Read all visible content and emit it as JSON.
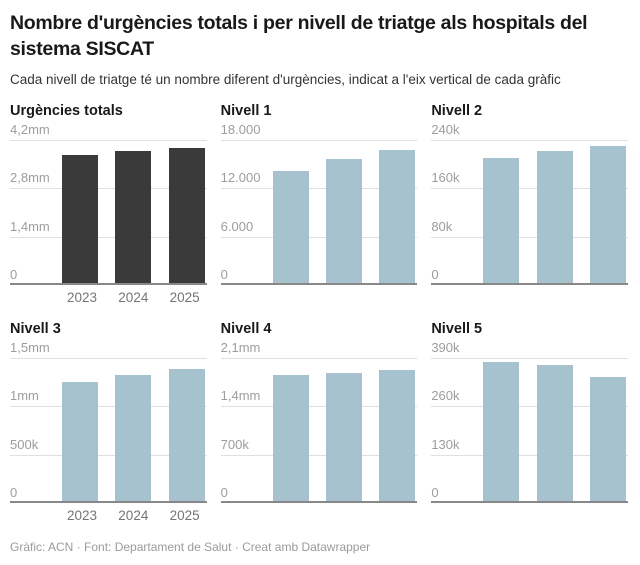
{
  "page": {
    "title": "Nombre d'urgències totals i per nivell de triatge als hospitals del sistema SISCAT",
    "subtitle": "Cada nivell de triatge té un nombre diferent d'urgències, indicat a l'eix vertical de cada gràfic",
    "footer": "Gràfic: ACN · Font: Departament de Salut · Creat amb Datawrapper"
  },
  "colors": {
    "dark_bar": "#3a3a3a",
    "blue_bar": "#a6c2ce",
    "gridline": "#e0e0e0",
    "axis_line": "#888888",
    "y_tick_label": "#9d9d9d",
    "x_tick_label": "#757575",
    "title_text": "#191919",
    "subtitle_text": "#333333",
    "footer_text": "#9b9b9b"
  },
  "chart_data": [
    {
      "type": "bar",
      "title": "Urgències totals",
      "categories": [
        "2023",
        "2024",
        "2025"
      ],
      "values": [
        3750000,
        3870000,
        3960000
      ],
      "ylim": [
        0,
        4200000
      ],
      "y_ticks": [
        {
          "label": "4,2mm",
          "value": 4200000
        },
        {
          "label": "2,8mm",
          "value": 2800000
        },
        {
          "label": "1,4mm",
          "value": 1400000
        },
        {
          "label": "0",
          "value": 0
        }
      ],
      "bar_color": "#3a3a3a",
      "show_x_labels": true,
      "grid": true,
      "legend": "none"
    },
    {
      "type": "bar",
      "title": "Nivell 1",
      "categories": [
        "2023",
        "2024",
        "2025"
      ],
      "values": [
        14100,
        15600,
        16800
      ],
      "ylim": [
        0,
        18000
      ],
      "y_ticks": [
        {
          "label": "18.000",
          "value": 18000
        },
        {
          "label": "12.000",
          "value": 12000
        },
        {
          "label": "6.000",
          "value": 6000
        },
        {
          "label": "0",
          "value": 0
        }
      ],
      "bar_color": "#a6c2ce",
      "show_x_labels": false,
      "grid": true,
      "legend": "none"
    },
    {
      "type": "bar",
      "title": "Nivell 2",
      "categories": [
        "2023",
        "2024",
        "2025"
      ],
      "values": [
        209000,
        222000,
        230000
      ],
      "ylim": [
        0,
        240000
      ],
      "y_ticks": [
        {
          "label": "240k",
          "value": 240000
        },
        {
          "label": "160k",
          "value": 160000
        },
        {
          "label": "80k",
          "value": 80000
        },
        {
          "label": "0",
          "value": 0
        }
      ],
      "bar_color": "#a6c2ce",
      "show_x_labels": false,
      "grid": true,
      "legend": "none"
    },
    {
      "type": "bar",
      "title": "Nivell 3",
      "categories": [
        "2023",
        "2024",
        "2025"
      ],
      "values": [
        1250000,
        1320000,
        1390000
      ],
      "ylim": [
        0,
        1500000
      ],
      "y_ticks": [
        {
          "label": "1,5mm",
          "value": 1500000
        },
        {
          "label": "1mm",
          "value": 1000000
        },
        {
          "label": "500k",
          "value": 500000
        },
        {
          "label": "0",
          "value": 0
        }
      ],
      "bar_color": "#a6c2ce",
      "show_x_labels": true,
      "grid": true,
      "legend": "none"
    },
    {
      "type": "bar",
      "title": "Nivell 4",
      "categories": [
        "2023",
        "2024",
        "2025"
      ],
      "values": [
        1850000,
        1880000,
        1920000
      ],
      "ylim": [
        0,
        2100000
      ],
      "y_ticks": [
        {
          "label": "2,1mm",
          "value": 2100000
        },
        {
          "label": "1,4mm",
          "value": 1400000
        },
        {
          "label": "700k",
          "value": 700000
        },
        {
          "label": "0",
          "value": 0
        }
      ],
      "bar_color": "#a6c2ce",
      "show_x_labels": false,
      "grid": true,
      "legend": "none"
    },
    {
      "type": "bar",
      "title": "Nivell 5",
      "categories": [
        "2023",
        "2024",
        "2025"
      ],
      "values": [
        380000,
        372000,
        338000
      ],
      "ylim": [
        0,
        390000
      ],
      "y_ticks": [
        {
          "label": "390k",
          "value": 390000
        },
        {
          "label": "260k",
          "value": 260000
        },
        {
          "label": "130k",
          "value": 130000
        },
        {
          "label": "0",
          "value": 0
        }
      ],
      "bar_color": "#a6c2ce",
      "show_x_labels": false,
      "grid": true,
      "legend": "none"
    }
  ]
}
